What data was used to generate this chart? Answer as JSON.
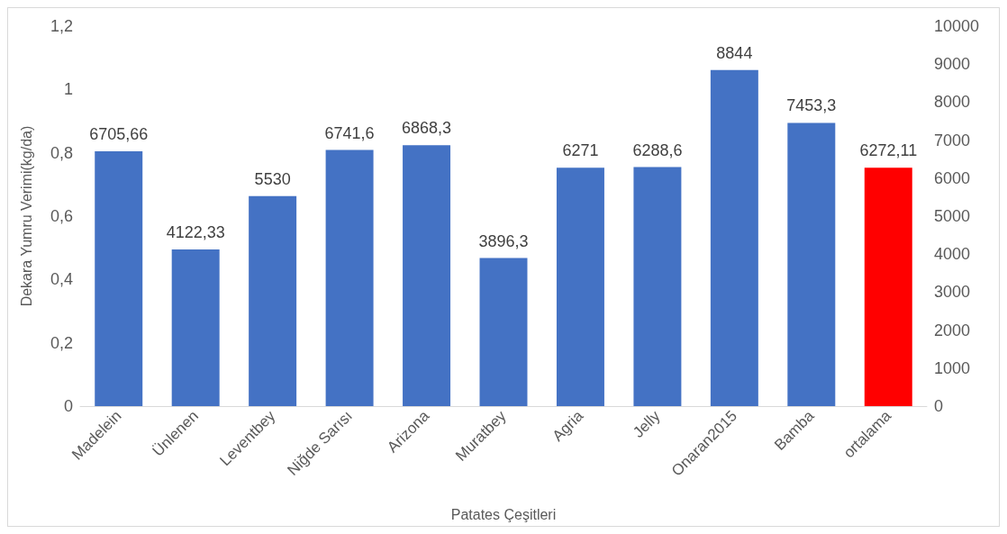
{
  "chart_data": {
    "type": "bar",
    "xlabel": "Patates Çeşitleri",
    "ylabel": "Dekara Yumru Verimi(kg/da)",
    "categories": [
      "Madelein",
      "Ünlenen",
      "Leventbey",
      "Niğde Sarısı",
      "Arizona",
      "Muratbey",
      "Agria",
      "Jelly",
      "Onaran2015",
      "Bamba",
      "ortalama"
    ],
    "series": [
      {
        "axis": "y2",
        "values": [
          6705.66,
          4122.33,
          5530,
          6741.6,
          6868.3,
          3896.3,
          6271,
          6288.6,
          8844,
          7453.3,
          6272.11
        ],
        "colors": [
          "#4472c4",
          "#4472c4",
          "#4472c4",
          "#4472c4",
          "#4472c4",
          "#4472c4",
          "#4472c4",
          "#4472c4",
          "#4472c4",
          "#4472c4",
          "#ff0000"
        ],
        "value_labels": [
          "6705,66",
          "4122,33",
          "5530",
          "6741,6",
          "6868,3",
          "3896,3",
          "6271",
          "6288,6",
          "8844",
          "7453,3",
          "6272,11"
        ]
      }
    ],
    "ylim": [
      0,
      1.2
    ],
    "yticks": [
      0,
      {
        "value": 0.2,
        "label": "0,2"
      },
      {
        "value": 0.4,
        "label": "0,4"
      },
      {
        "value": 0.6,
        "label": "0,6"
      },
      {
        "value": 0.8,
        "label": "0,8"
      },
      1,
      {
        "value": 1.2,
        "label": "1,2"
      }
    ],
    "y2lim": [
      0,
      10000
    ],
    "y2ticks": [
      0,
      1000,
      2000,
      3000,
      4000,
      5000,
      6000,
      7000,
      8000,
      9000,
      10000
    ],
    "grid": false
  }
}
